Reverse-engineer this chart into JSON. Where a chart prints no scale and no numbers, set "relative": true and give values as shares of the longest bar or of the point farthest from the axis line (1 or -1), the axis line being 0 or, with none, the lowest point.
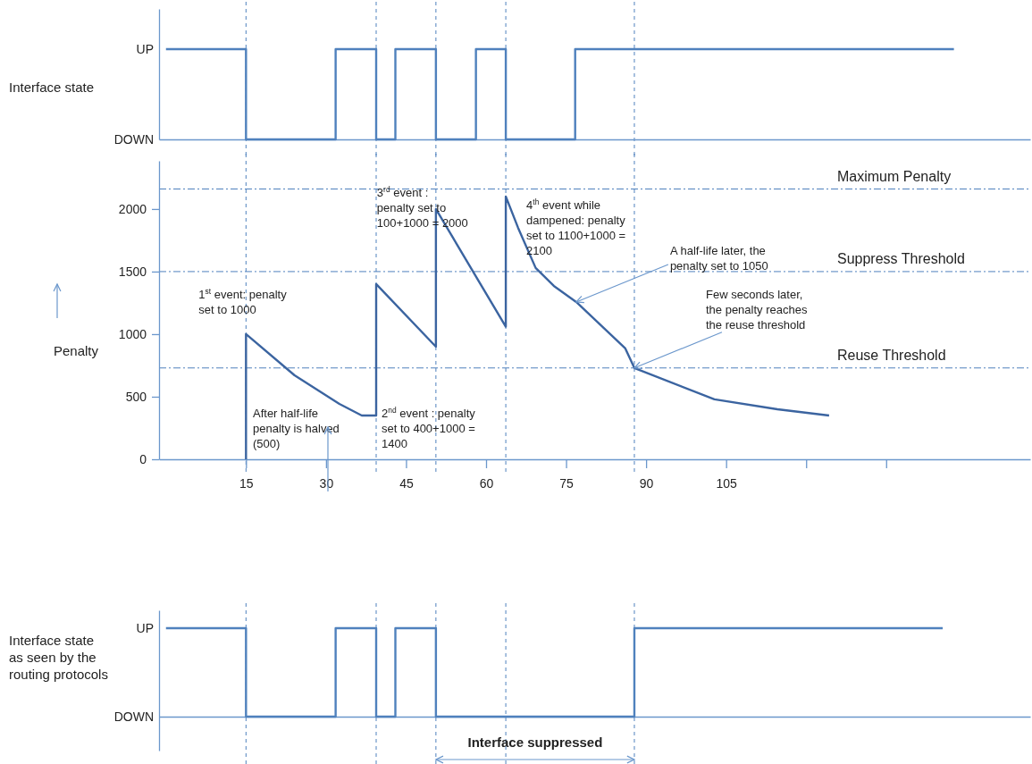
{
  "chart_data": [
    {
      "type": "step",
      "ylabel": "Interface state",
      "xlim": [
        -1.3,
        162
      ],
      "relative": true,
      "series": [
        {
          "color": "#4f81bd",
          "x": [
            0,
            15,
            31.8,
            39.4,
            43,
            50.6,
            58.1,
            63.7,
            76.7,
            147.7
          ],
          "values": [
            1,
            0,
            1,
            0,
            1,
            0,
            1,
            0,
            1,
            1
          ]
        }
      ],
      "ref_lines": [
        {
          "axis": "x",
          "value": 15,
          "color": "#4f81bd",
          "line_style": "dashed"
        },
        {
          "axis": "x",
          "value": 39.4,
          "color": "#4f81bd",
          "line_style": "dashed"
        },
        {
          "axis": "x",
          "value": 50.6,
          "color": "#4f81bd",
          "line_style": "dashed"
        },
        {
          "axis": "x",
          "value": 63.7,
          "color": "#4f81bd",
          "line_style": "dashed"
        },
        {
          "axis": "x",
          "value": 87.8,
          "color": "#4f81bd",
          "line_style": "dashed"
        }
      ],
      "annotations": [
        "UP",
        "DOWN"
      ]
    },
    {
      "type": "line",
      "ylabel": "Penalty",
      "xlim": [
        -1.3,
        162
      ],
      "ylim": [
        0,
        2385
      ],
      "xticks": [
        15,
        30,
        45,
        60,
        75,
        90,
        105,
        {
          "value": 120,
          "label": null
        },
        {
          "value": 135,
          "label": null
        }
      ],
      "yticks": [
        0,
        500,
        1000,
        1500,
        2000
      ],
      "series": [
        {
          "color": "#3b64a0",
          "x": [
            15,
            15,
            24.1,
            32.5,
            36.7,
            39.4,
            39.4,
            50.6,
            50.6,
            63.7,
            63.7,
            66,
            69.3,
            72.7,
            76.9,
            86.1,
            87.8,
            102.8,
            114.6,
            124.3
          ],
          "values": [
            0,
            1000,
            671,
            443,
            350,
            350,
            1400,
            900,
            2000,
            1060,
            2100,
            1850,
            1529,
            1386,
            1257,
            886,
            730,
            479,
            400,
            350
          ]
        }
      ],
      "ref_lines": [
        {
          "axis": "x",
          "value": 15,
          "color": "#4f81bd",
          "line_style": "dashed"
        },
        {
          "axis": "x",
          "value": 39.4,
          "color": "#4f81bd",
          "line_style": "dashed"
        },
        {
          "axis": "x",
          "value": 50.6,
          "color": "#4f81bd",
          "line_style": "dashed"
        },
        {
          "axis": "x",
          "value": 63.7,
          "color": "#4f81bd",
          "line_style": "dashed"
        },
        {
          "axis": "x",
          "value": 87.8,
          "color": "#4f81bd",
          "line_style": "dashed"
        },
        {
          "axis": "y",
          "value": 2160,
          "label": "Maximum Penalty",
          "color": "#4f81bd",
          "line_style": "dashed"
        },
        {
          "axis": "y",
          "value": 1500,
          "label": "Suppress Threshold",
          "color": "#4f81bd",
          "line_style": "dashed"
        },
        {
          "axis": "y",
          "value": 730,
          "label": "Reuse Threshold",
          "color": "#4f81bd",
          "line_style": "dashed"
        }
      ],
      "annotations": [
        {
          "text": "1$^{st}$ event: penalty set to 1000",
          "x": 15,
          "y": 1000
        },
        "After half-life penalty is halved (500)",
        "2$^{nd}$ event : penalty set to 400+1000 = 1400",
        {
          "text": "3$^{rd}$ event : penalty set to 100+1000 = 2000",
          "x": 50.6,
          "y": 2000
        },
        {
          "text": "4$^{th}$ event while dampened: penalty set to 1100+1000 = 2100",
          "x": 63.7,
          "y": 2100
        },
        {
          "text": "A half-life later, the penalty set to 1050",
          "x": 76.9,
          "y": 1257
        },
        {
          "text": "Few seconds later, the penalty reaches the reuse threshold",
          "x": 87.8,
          "y": 730
        }
      ]
    },
    {
      "type": "step",
      "ylabel": "Interface state as seen by the routing protocols",
      "xlim": [
        -1.3,
        162
      ],
      "relative": true,
      "series": [
        {
          "color": "#4f81bd",
          "x": [
            0,
            15,
            31.8,
            39.4,
            43,
            50.6,
            87.8,
            145.6
          ],
          "values": [
            1,
            0,
            1,
            0,
            1,
            0,
            1,
            1
          ]
        }
      ],
      "ref_lines": [
        {
          "axis": "x",
          "value": 15,
          "color": "#4f81bd",
          "line_style": "dashed"
        },
        {
          "axis": "x",
          "value": 39.4,
          "color": "#4f81bd",
          "line_style": "dashed"
        },
        {
          "axis": "x",
          "value": 50.6,
          "color": "#4f81bd",
          "line_style": "dashed"
        },
        {
          "axis": "x",
          "value": 63.7,
          "color": "#4f81bd",
          "line_style": "dashed"
        },
        {
          "axis": "x",
          "value": 87.8,
          "color": "#4f81bd",
          "line_style": "dashed"
        }
      ],
      "annotations": [
        "UP",
        "DOWN",
        "Interface suppressed"
      ]
    }
  ]
}
